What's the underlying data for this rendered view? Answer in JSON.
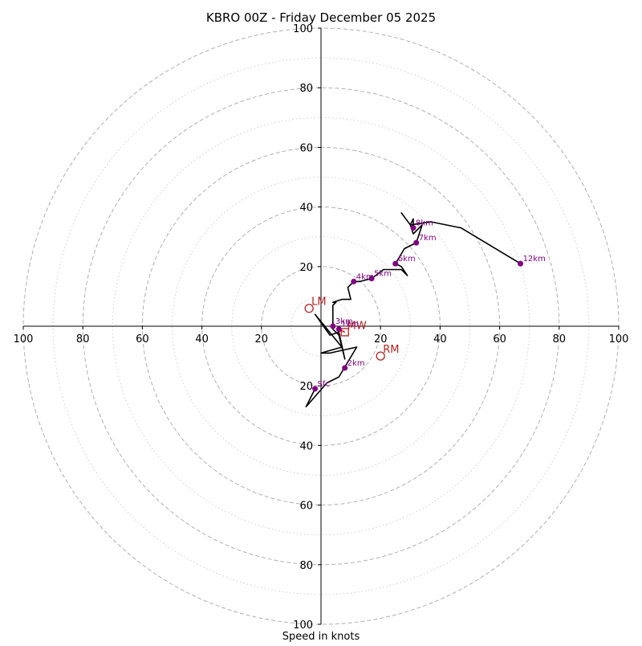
{
  "chart_data": {
    "type": "hodograph",
    "title": "KBRO 00Z - Friday December 05 2025",
    "xlabel": "Speed in knots",
    "range": [
      -100,
      100
    ],
    "ring_major": [
      20,
      40,
      60,
      80,
      100
    ],
    "ring_minor": [
      10,
      30,
      50,
      70,
      90
    ],
    "x_ticks": [
      -100,
      -80,
      -60,
      -40,
      -20,
      20,
      40,
      60,
      80,
      100
    ],
    "y_ticks": [
      -100,
      -80,
      -60,
      -40,
      -20,
      20,
      40,
      60,
      80,
      100
    ],
    "x_tick_labels": [
      "100",
      "80",
      "60",
      "40",
      "20",
      "20",
      "40",
      "60",
      "80",
      "100"
    ],
    "y_tick_labels": [
      "100",
      "80",
      "60",
      "40",
      "20",
      "20",
      "40",
      "60",
      "80",
      "100"
    ],
    "hodograph_line": [
      [
        -2,
        -21
      ],
      [
        -5,
        -27
      ],
      [
        2,
        -19
      ],
      [
        6,
        -17
      ],
      [
        12,
        -7
      ],
      [
        3,
        -9
      ],
      [
        0,
        -9
      ],
      [
        7,
        -7
      ],
      [
        -2,
        4
      ],
      [
        3,
        -3
      ],
      [
        6,
        -2
      ],
      [
        8,
        -11
      ],
      [
        6,
        -3
      ],
      [
        4,
        -1
      ],
      [
        4,
        7
      ],
      [
        5,
        8
      ],
      [
        4,
        8
      ],
      [
        7,
        9
      ],
      [
        10,
        9
      ],
      [
        9,
        13
      ],
      [
        11,
        15
      ],
      [
        13,
        15
      ],
      [
        17,
        16
      ],
      [
        21,
        19
      ],
      [
        27,
        19
      ],
      [
        29,
        17
      ],
      [
        27,
        20
      ],
      [
        25,
        21
      ],
      [
        28,
        26
      ],
      [
        32,
        28
      ],
      [
        34,
        34
      ],
      [
        31,
        31
      ],
      [
        30,
        34
      ],
      [
        31,
        36
      ],
      [
        31,
        34
      ],
      [
        30,
        34
      ],
      [
        27,
        38
      ],
      [
        30,
        34
      ],
      [
        37,
        35
      ],
      [
        47,
        33
      ],
      [
        67,
        21
      ]
    ],
    "height_markers": [
      {
        "label": "Sfc",
        "u": -2,
        "v": -21
      },
      {
        "label": "1km",
        "u": 6,
        "v": -1
      },
      {
        "label": "2km",
        "u": 8,
        "v": -14
      },
      {
        "label": "3km",
        "u": 4,
        "v": 0
      },
      {
        "label": "4km",
        "u": 11,
        "v": 15
      },
      {
        "label": "5km",
        "u": 17,
        "v": 16
      },
      {
        "label": "6km",
        "u": 25,
        "v": 21
      },
      {
        "label": "7km",
        "u": 32,
        "v": 28
      },
      {
        "label": "8km",
        "u": 31,
        "v": 33
      },
      {
        "label": "12km",
        "u": 67,
        "v": 21
      }
    ],
    "storm_motion": [
      {
        "label": "LM",
        "u": -4,
        "v": 6,
        "marker": "circle"
      },
      {
        "label": "RM",
        "u": 20,
        "v": -10,
        "marker": "circle"
      },
      {
        "label": "MW",
        "u": 8,
        "v": -2,
        "marker": "square"
      }
    ],
    "shear_vector": [
      [
        6,
        -1
      ],
      [
        8,
        -2
      ]
    ],
    "colors": {
      "line": "#000000",
      "markers": "#800080",
      "storm": "#b22222",
      "shear": "#ff0000",
      "grid": "#b0b0b0",
      "axes": "#000000"
    }
  }
}
